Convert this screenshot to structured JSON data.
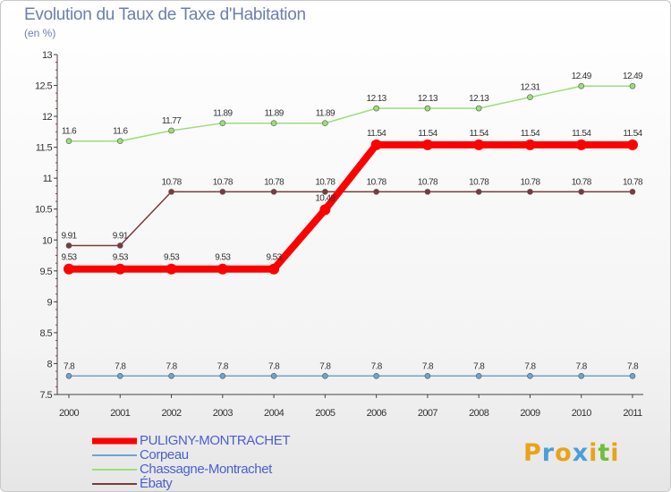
{
  "header": {
    "title": "Evolution du Taux de Taxe d'Habitation",
    "unit": "(en %)"
  },
  "logo": {
    "text": "Proxiti",
    "letters": [
      "P",
      "r",
      "o",
      "x",
      "i",
      "t",
      "i"
    ],
    "colors": [
      "#e8a317",
      "#4a9fd8",
      "#e8a317",
      "#4a9fd8",
      "#e8a317",
      "#6fbf3a",
      "#e8a317"
    ]
  },
  "chart_data": {
    "type": "line",
    "title": "Evolution du Taux de Taxe d'Habitation",
    "ylabel": "(en %)",
    "xlabel": "",
    "x": [
      "2000",
      "2001",
      "2002",
      "2003",
      "2004",
      "2005",
      "2006",
      "2007",
      "2008",
      "2009",
      "2010",
      "2011"
    ],
    "ylim": [
      7.5,
      13
    ],
    "yticks": [
      "7.5",
      "8",
      "8.5",
      "9",
      "9.5",
      "10",
      "10.5",
      "11",
      "11.5",
      "12",
      "12.5",
      "13"
    ],
    "grid": false,
    "legend_position": "bottom-left",
    "series": [
      {
        "name": "PULIGNY-MONTRACHET",
        "color": "#ff0000",
        "emphasis": true,
        "values": [
          9.53,
          9.53,
          9.53,
          9.53,
          9.53,
          10.49,
          11.54,
          11.54,
          11.54,
          11.54,
          11.54,
          11.54
        ],
        "labels": [
          "9.53",
          "9.53",
          "9.53",
          "9.53",
          "9.53",
          "10.49",
          "11.54",
          "11.54",
          "11.54",
          "11.54",
          "11.54",
          "11.54"
        ]
      },
      {
        "name": "Corpeau",
        "color": "#6fa3cf",
        "values": [
          7.8,
          7.8,
          7.8,
          7.8,
          7.8,
          7.8,
          7.8,
          7.8,
          7.8,
          7.8,
          7.8,
          7.8
        ],
        "labels": [
          "7.8",
          "7.8",
          "7.8",
          "7.8",
          "7.8",
          "7.8",
          "7.8",
          "7.8",
          "7.8",
          "7.8",
          "7.8",
          "7.8"
        ]
      },
      {
        "name": "Chassagne-Montrachet",
        "color": "#9bde79",
        "values": [
          11.6,
          11.6,
          11.77,
          11.89,
          11.89,
          11.89,
          12.13,
          12.13,
          12.13,
          12.31,
          12.49,
          12.49
        ],
        "labels": [
          "11.6",
          "11.6",
          "11.77",
          "11.89",
          "11.89",
          "11.89",
          "12.13",
          "12.13",
          "12.13",
          "12.31",
          "12.49",
          "12.49"
        ]
      },
      {
        "name": "Ébaty",
        "color": "#7a3b3b",
        "values": [
          9.91,
          9.91,
          10.78,
          10.78,
          10.78,
          10.78,
          10.78,
          10.78,
          10.78,
          10.78,
          10.78,
          10.78
        ],
        "labels": [
          "9.91",
          "9.91",
          "10.78",
          "10.78",
          "10.78",
          "10.78",
          "10.78",
          "10.78",
          "10.78",
          "10.78",
          "10.78",
          "10.78"
        ]
      }
    ]
  }
}
